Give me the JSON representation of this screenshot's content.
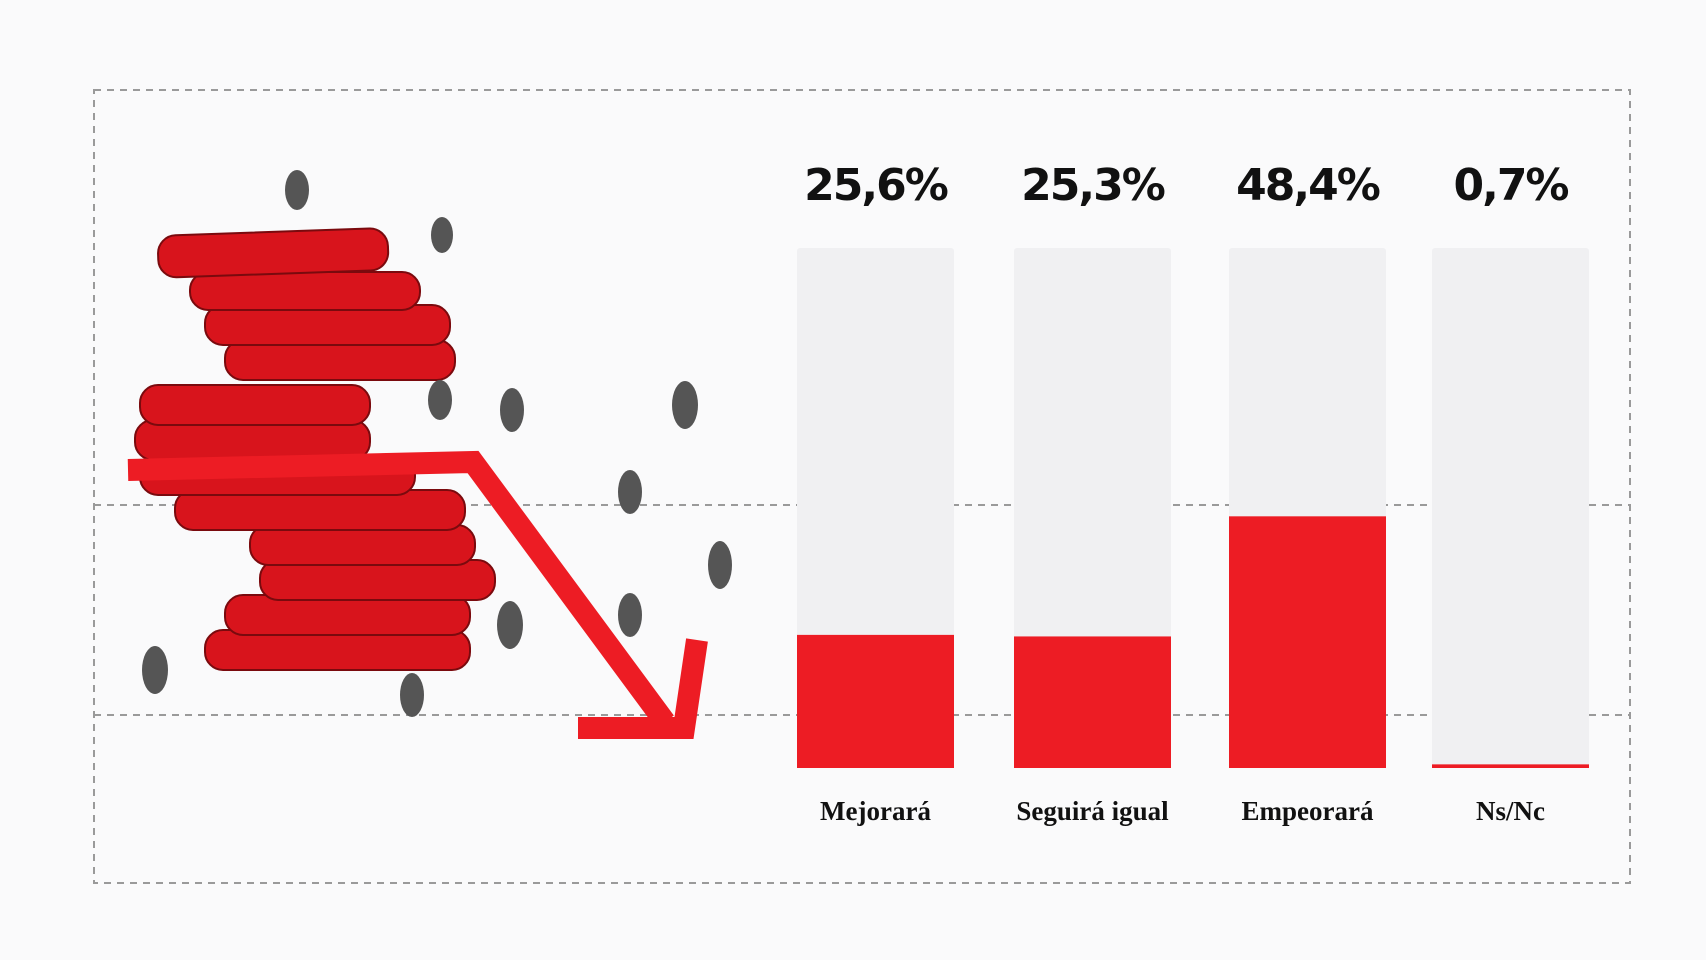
{
  "chart_data": {
    "type": "bar",
    "categories": [
      "Mejorará",
      "Seguirá igual",
      "Empeorará",
      "Ns/Nc"
    ],
    "values": [
      25.6,
      25.3,
      48.4,
      0.7
    ],
    "value_labels": [
      "25,6%",
      "25,3%",
      "48,4%",
      "0,7%"
    ],
    "color": "#ed1c24",
    "track_color": "#f0f0f2",
    "ylim": [
      0,
      100
    ]
  }
}
